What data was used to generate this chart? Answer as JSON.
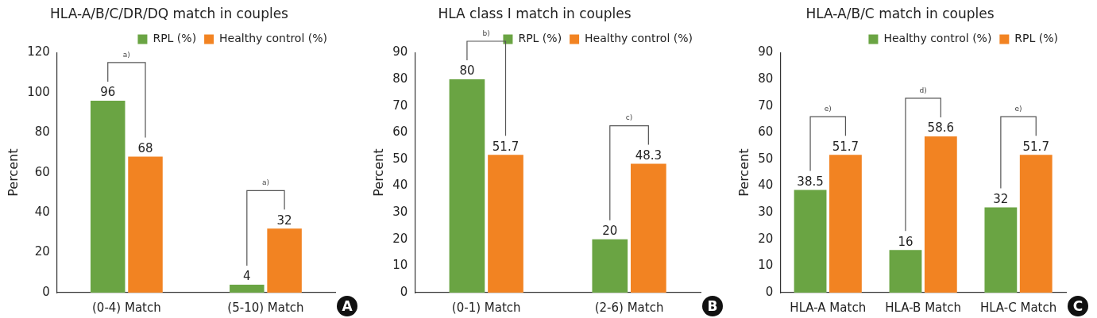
{
  "chart_data": [
    {
      "type": "bar",
      "title": "HLA-A/B/C/DR/DQ match in couples",
      "ylabel": "Percent",
      "categories": [
        "(0-4) Match",
        "(5-10) Match"
      ],
      "series": [
        {
          "name": "RPL (%)",
          "color": "#6aa443",
          "values": [
            96,
            4
          ]
        },
        {
          "name": "Healthy control (%)",
          "color": "#f28322",
          "values": [
            68,
            32
          ]
        }
      ],
      "ylim": [
        0,
        120
      ],
      "yticks": [
        0,
        20,
        40,
        60,
        80,
        100,
        120
      ],
      "data_labels": true,
      "legend": "top right",
      "annotations": [
        "a)",
        "a)",
        "A"
      ]
    },
    {
      "type": "bar",
      "title": "HLA class I match in couples",
      "ylabel": "Percent",
      "categories": [
        "(0-1) Match",
        "(2-6) Match"
      ],
      "series": [
        {
          "name": "RPL (%)",
          "color": "#6aa443",
          "values": [
            80,
            20
          ]
        },
        {
          "name": "Healthy control (%)",
          "color": "#f28322",
          "values": [
            51.7,
            48.3
          ]
        }
      ],
      "ylim": [
        0,
        90
      ],
      "yticks": [
        0,
        10,
        20,
        30,
        40,
        50,
        60,
        70,
        80,
        90
      ],
      "data_labels": true,
      "legend": "top right",
      "annotations": [
        "b)",
        "c)",
        "B"
      ]
    },
    {
      "type": "bar",
      "title": "HLA-A/B/C match in couples",
      "ylabel": "Percent",
      "categories": [
        "HLA-A Match",
        "HLA-B Match",
        "HLA-C Match"
      ],
      "series": [
        {
          "name": "Healthy control (%)",
          "color": "#6aa443",
          "values": [
            38.5,
            16,
            32
          ]
        },
        {
          "name": "RPL (%)",
          "color": "#f28322",
          "values": [
            51.7,
            58.6,
            51.7
          ]
        }
      ],
      "ylim": [
        0,
        90
      ],
      "yticks": [
        0,
        10,
        20,
        30,
        40,
        50,
        60,
        70,
        80,
        90
      ],
      "data_labels": true,
      "legend": "top right",
      "annotations": [
        "e)",
        "d)",
        "e)",
        "C"
      ]
    }
  ]
}
